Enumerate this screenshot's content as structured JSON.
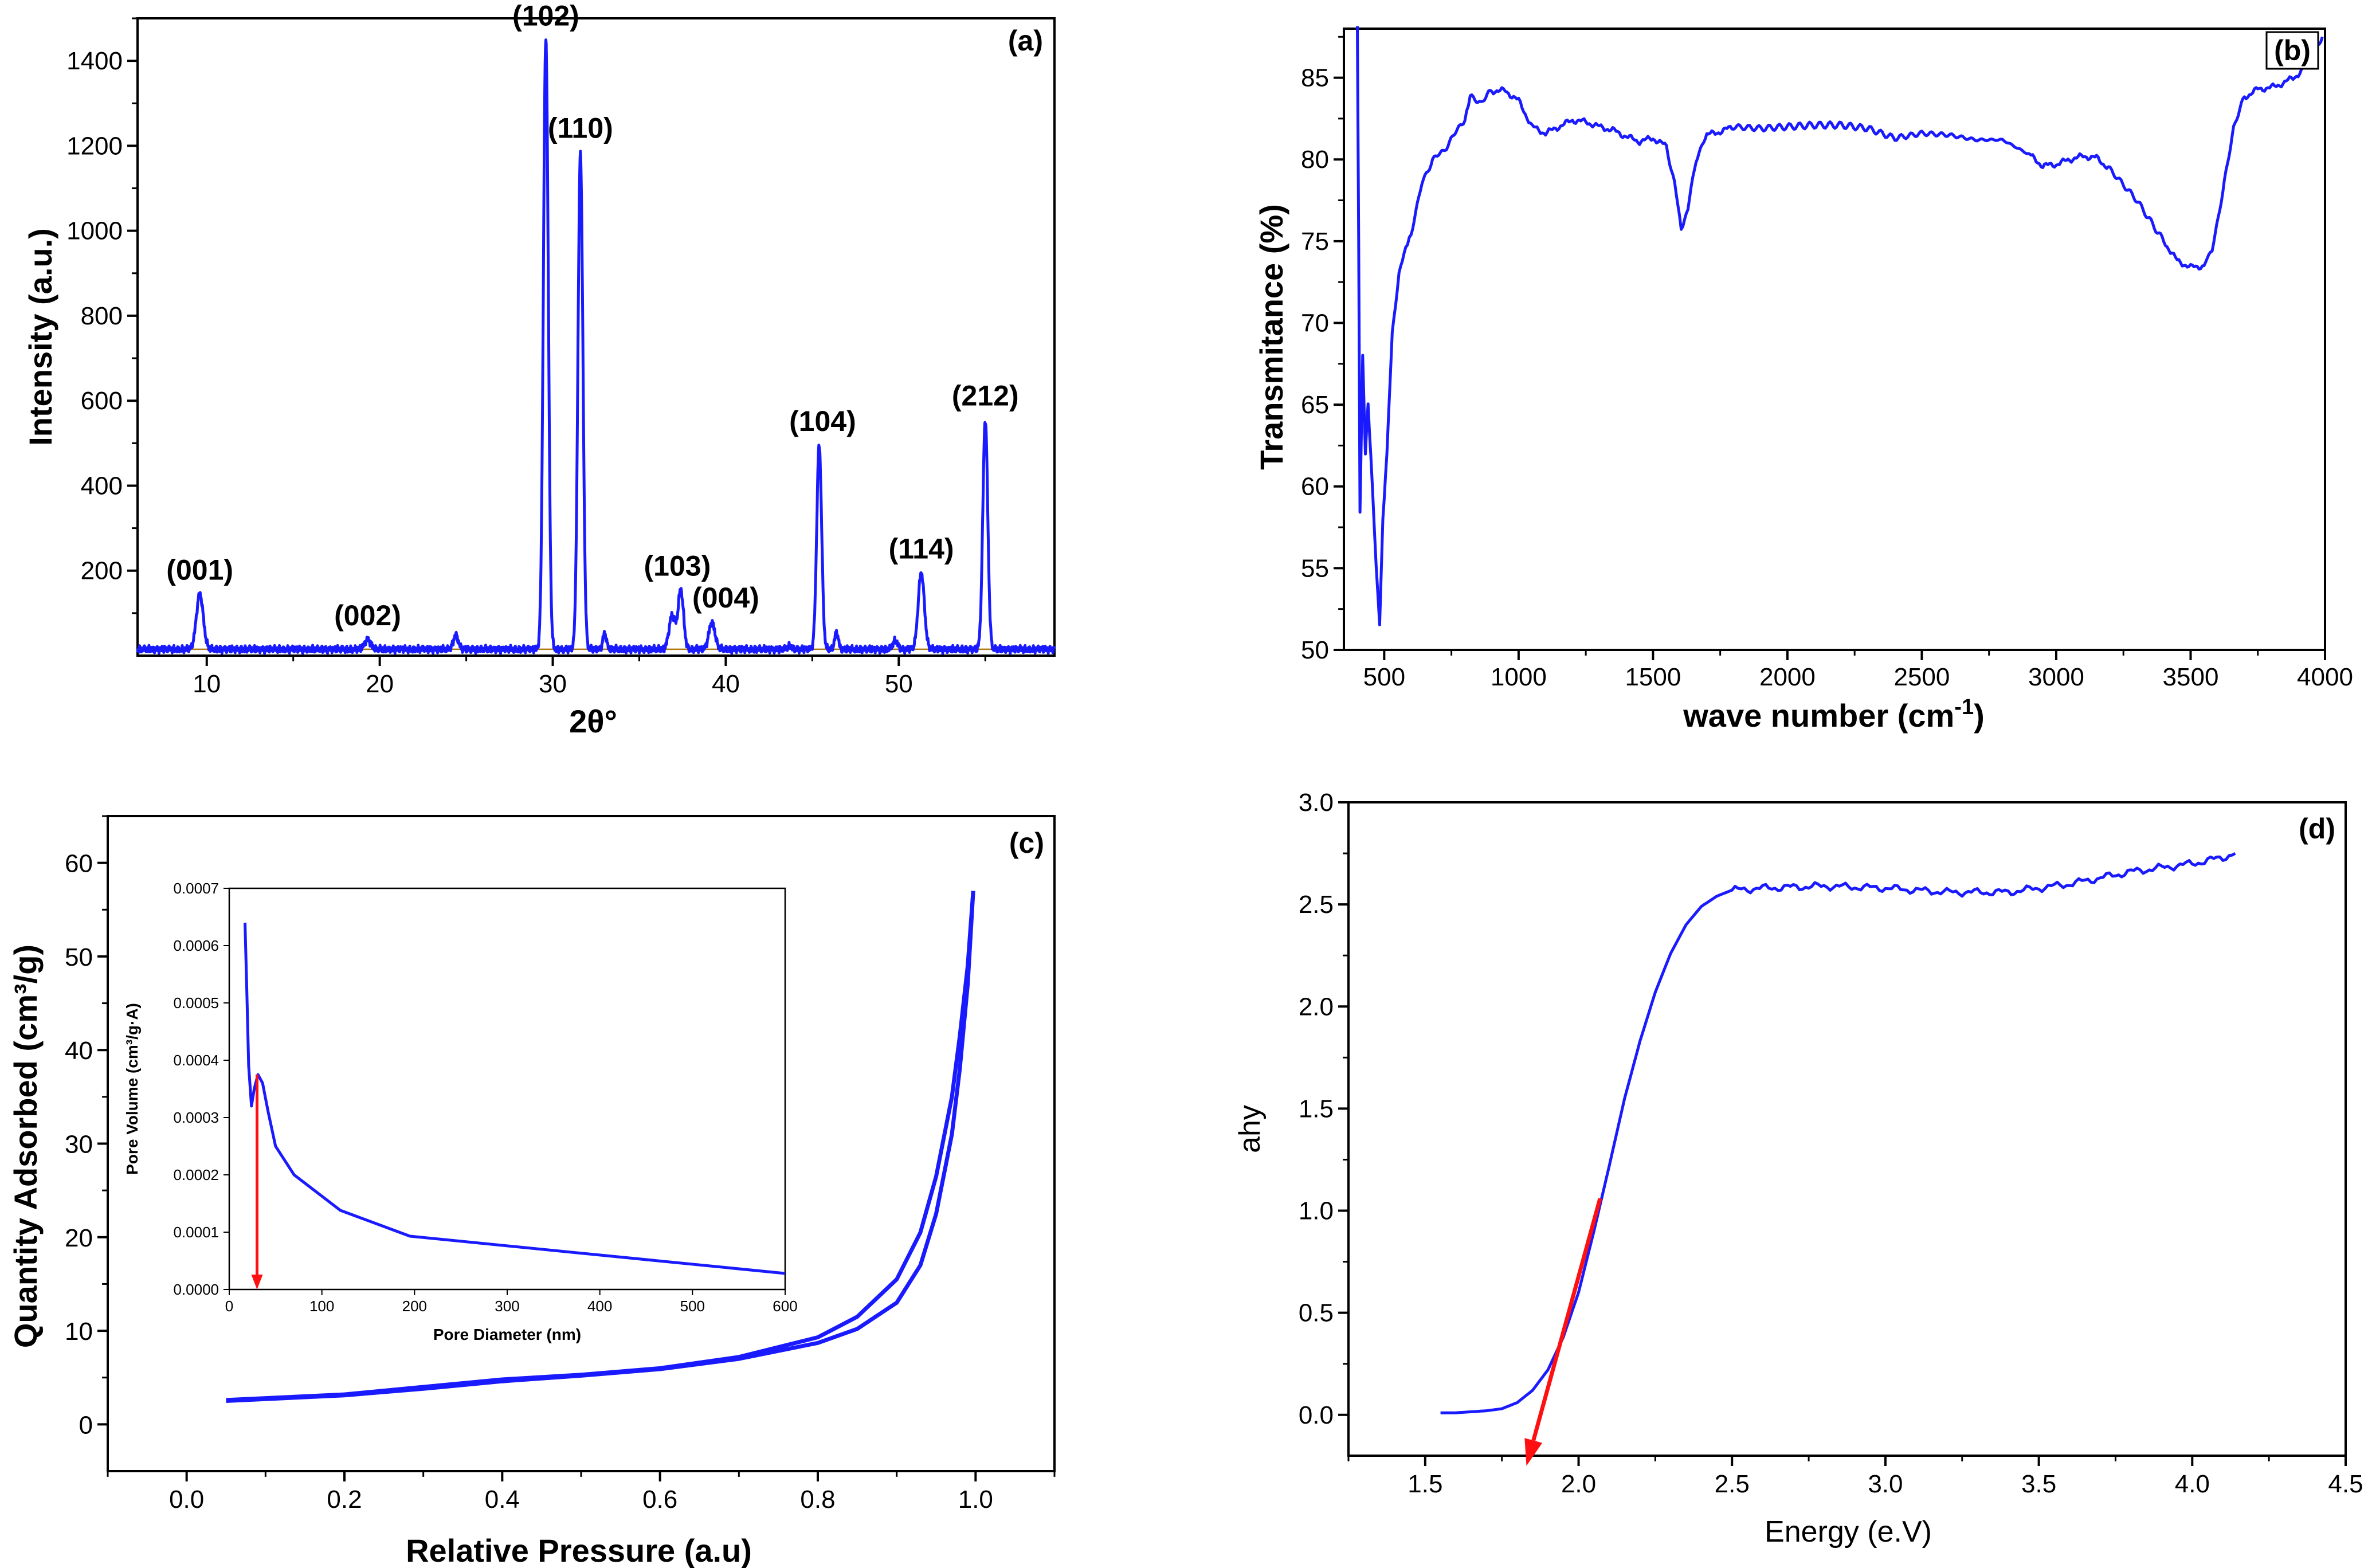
{
  "chart_data": [
    {
      "id": "a",
      "type": "line",
      "panel_label": "(a)",
      "xlabel": "2θ°",
      "ylabel": "Intensity (a.u.)",
      "xlim": [
        6,
        59
      ],
      "ylim": [
        0,
        1500
      ],
      "xticks": [
        10,
        20,
        30,
        40,
        50
      ],
      "yticks": [
        200,
        400,
        600,
        800,
        1000,
        1200,
        1400
      ],
      "baseline": 15,
      "peaks": [
        {
          "x": 9.6,
          "y": 145,
          "w": 0.28,
          "label": "(001)"
        },
        {
          "x": 19.3,
          "y": 38,
          "w": 0.25,
          "label": "(002)"
        },
        {
          "x": 24.4,
          "y": 48,
          "w": 0.2,
          "label": ""
        },
        {
          "x": 29.6,
          "y": 1450,
          "w": 0.2,
          "label": "(102)"
        },
        {
          "x": 31.6,
          "y": 1185,
          "w": 0.2,
          "label": "(110)"
        },
        {
          "x": 33.0,
          "y": 52,
          "w": 0.15,
          "label": ""
        },
        {
          "x": 36.9,
          "y": 95,
          "w": 0.25,
          "label": ""
        },
        {
          "x": 37.4,
          "y": 155,
          "w": 0.22,
          "label": "(103)"
        },
        {
          "x": 39.2,
          "y": 78,
          "w": 0.25,
          "label": "(004)"
        },
        {
          "x": 43.7,
          "y": 22,
          "w": 0.2,
          "label": ""
        },
        {
          "x": 45.4,
          "y": 495,
          "w": 0.2,
          "label": "(104)"
        },
        {
          "x": 46.4,
          "y": 55,
          "w": 0.15,
          "label": ""
        },
        {
          "x": 49.8,
          "y": 35,
          "w": 0.2,
          "label": ""
        },
        {
          "x": 51.3,
          "y": 195,
          "w": 0.25,
          "label": "(114)"
        },
        {
          "x": 55.0,
          "y": 555,
          "w": 0.2,
          "label": "(212)"
        }
      ],
      "peak_labels": [
        {
          "x": 9.6,
          "y": 165,
          "text": "(001)"
        },
        {
          "x": 19.3,
          "y": 58,
          "text": "(002)"
        },
        {
          "x": 29.6,
          "y": 1470,
          "text": "(102)"
        },
        {
          "x": 31.6,
          "y": 1205,
          "text": "(110)"
        },
        {
          "x": 37.2,
          "y": 175,
          "text": "(103)"
        },
        {
          "x": 40.0,
          "y": 100,
          "text": "(004)"
        },
        {
          "x": 45.6,
          "y": 515,
          "text": "(104)"
        },
        {
          "x": 51.3,
          "y": 215,
          "text": "(114)"
        },
        {
          "x": 55.0,
          "y": 575,
          "text": "(212)"
        }
      ]
    },
    {
      "id": "b",
      "type": "line",
      "panel_label": "(b)",
      "xlabel": "wave number (cm",
      "xlabel_sup": "-1",
      "xlabel_tail": ")",
      "ylabel": "Transmitance (%)",
      "xlim": [
        350,
        4000
      ],
      "ylim": [
        50,
        88
      ],
      "xticks": [
        500,
        1000,
        1500,
        2000,
        2500,
        3000,
        3500,
        4000
      ],
      "yticks": [
        50,
        55,
        60,
        65,
        70,
        75,
        80,
        85
      ],
      "points": [
        [
          400,
          88
        ],
        [
          405,
          75
        ],
        [
          410,
          58.5
        ],
        [
          420,
          68
        ],
        [
          430,
          62
        ],
        [
          440,
          65
        ],
        [
          450,
          62
        ],
        [
          470,
          55
        ],
        [
          483,
          51.5
        ],
        [
          495,
          58
        ],
        [
          510,
          62
        ],
        [
          530,
          69.5
        ],
        [
          555,
          73
        ],
        [
          580,
          74.5
        ],
        [
          600,
          75.5
        ],
        [
          640,
          78.5
        ],
        [
          680,
          80
        ],
        [
          720,
          80.5
        ],
        [
          760,
          81.5
        ],
        [
          800,
          82.5
        ],
        [
          820,
          83.8
        ],
        [
          860,
          83.5
        ],
        [
          900,
          84.2
        ],
        [
          950,
          84.2
        ],
        [
          1000,
          83.6
        ],
        [
          1050,
          82
        ],
        [
          1100,
          81.6
        ],
        [
          1150,
          82
        ],
        [
          1200,
          82.4
        ],
        [
          1250,
          82.3
        ],
        [
          1300,
          82
        ],
        [
          1350,
          81.8
        ],
        [
          1400,
          81.4
        ],
        [
          1450,
          81.1
        ],
        [
          1500,
          81.3
        ],
        [
          1550,
          80.8
        ],
        [
          1580,
          78.5
        ],
        [
          1605,
          75.8
        ],
        [
          1630,
          77
        ],
        [
          1660,
          80
        ],
        [
          1700,
          81.5
        ],
        [
          1750,
          81.7
        ],
        [
          1800,
          82
        ],
        [
          1900,
          81.9
        ],
        [
          2000,
          82
        ],
        [
          2100,
          82.1
        ],
        [
          2200,
          82.1
        ],
        [
          2300,
          81.9
        ],
        [
          2400,
          81.3
        ],
        [
          2500,
          81.6
        ],
        [
          2600,
          81.5
        ],
        [
          2700,
          81.2
        ],
        [
          2800,
          81.2
        ],
        [
          2900,
          80.3
        ],
        [
          2950,
          79.6
        ],
        [
          3000,
          79.7
        ],
        [
          3050,
          80
        ],
        [
          3100,
          80.2
        ],
        [
          3150,
          80.1
        ],
        [
          3200,
          79.4
        ],
        [
          3300,
          77.5
        ],
        [
          3400,
          75
        ],
        [
          3450,
          73.8
        ],
        [
          3500,
          73.4
        ],
        [
          3550,
          73.5
        ],
        [
          3580,
          74.5
        ],
        [
          3620,
          78
        ],
        [
          3660,
          82
        ],
        [
          3700,
          83.8
        ],
        [
          3750,
          84.3
        ],
        [
          3800,
          84.4
        ],
        [
          3850,
          84.7
        ],
        [
          3900,
          85.2
        ],
        [
          3950,
          86
        ],
        [
          3990,
          87.5
        ]
      ]
    },
    {
      "id": "c",
      "type": "line",
      "panel_label": "(c)",
      "xlabel": "Relative Pressure (a.u)",
      "ylabel": "Quantity Adsorbed (cm³/g)",
      "xlim": [
        -0.1,
        1.1
      ],
      "ylim": [
        -5,
        65
      ],
      "xticks": [
        0.0,
        0.2,
        0.4,
        0.6,
        0.8,
        1.0
      ],
      "yticks": [
        0,
        10,
        20,
        30,
        40,
        50,
        60
      ],
      "adsorption": [
        [
          0.05,
          2.5
        ],
        [
          0.1,
          2.7
        ],
        [
          0.2,
          3.1
        ],
        [
          0.3,
          3.8
        ],
        [
          0.4,
          4.6
        ],
        [
          0.5,
          5.2
        ],
        [
          0.6,
          5.9
        ],
        [
          0.7,
          7.0
        ],
        [
          0.8,
          8.7
        ],
        [
          0.85,
          10.2
        ],
        [
          0.9,
          13.0
        ],
        [
          0.93,
          17.0
        ],
        [
          0.95,
          22.5
        ],
        [
          0.97,
          31.0
        ],
        [
          0.98,
          38.0
        ],
        [
          0.99,
          47.0
        ],
        [
          0.997,
          57.0
        ]
      ],
      "desorption": [
        [
          0.997,
          57.0
        ],
        [
          0.99,
          49.0
        ],
        [
          0.98,
          41.5
        ],
        [
          0.97,
          35.0
        ],
        [
          0.95,
          26.5
        ],
        [
          0.93,
          20.5
        ],
        [
          0.9,
          15.5
        ],
        [
          0.85,
          11.5
        ],
        [
          0.8,
          9.3
        ],
        [
          0.7,
          7.2
        ],
        [
          0.6,
          6.0
        ],
        [
          0.5,
          5.3
        ],
        [
          0.4,
          4.8
        ],
        [
          0.3,
          4.0
        ],
        [
          0.2,
          3.2
        ],
        [
          0.1,
          2.8
        ],
        [
          0.05,
          2.6
        ]
      ],
      "inset": {
        "type": "line",
        "xlabel": "Pore Diameter (nm)",
        "ylabel": "Pore Volume (cm³/g·A)",
        "xlim": [
          0,
          600
        ],
        "ylim": [
          0,
          0.0007
        ],
        "xticks": [
          0,
          100,
          200,
          300,
          400,
          500,
          600
        ],
        "yticks": [
          "0.0000",
          "0.0001",
          "0.0002",
          "0.0003",
          "0.0004",
          "0.0005",
          "0.0006",
          "0.0007"
        ],
        "ytick_values": [
          0,
          0.0001,
          0.0002,
          0.0003,
          0.0004,
          0.0005,
          0.0006,
          0.0007
        ],
        "points": [
          [
            17,
            0.00064
          ],
          [
            19,
            0.00052
          ],
          [
            21,
            0.00039
          ],
          [
            24,
            0.00032
          ],
          [
            27,
            0.00035
          ],
          [
            31,
            0.000375
          ],
          [
            36,
            0.00036
          ],
          [
            42,
            0.00031
          ],
          [
            50,
            0.00025
          ],
          [
            70,
            0.0002
          ],
          [
            120,
            0.000138
          ],
          [
            195,
            9.3e-05
          ],
          [
            600,
            2.8e-05
          ]
        ],
        "arrow_x": 30,
        "arrow_from": 0.000375,
        "arrow_to": 0.0
      }
    },
    {
      "id": "d",
      "type": "line",
      "panel_label": "(d)",
      "xlabel": "Energy (e.V)",
      "ylabel": "ahy",
      "xlim": [
        1.25,
        4.5
      ],
      "ylim": [
        -0.2,
        3.0
      ],
      "xticks": [
        1.5,
        2.0,
        2.5,
        3.0,
        3.5,
        4.0,
        4.5
      ],
      "yticks": [
        0.0,
        0.5,
        1.0,
        1.5,
        2.0,
        2.5,
        3.0
      ],
      "points": [
        [
          1.55,
          0.01
        ],
        [
          1.6,
          0.01
        ],
        [
          1.7,
          0.02
        ],
        [
          1.75,
          0.03
        ],
        [
          1.8,
          0.06
        ],
        [
          1.85,
          0.12
        ],
        [
          1.9,
          0.22
        ],
        [
          1.95,
          0.38
        ],
        [
          2.0,
          0.6
        ],
        [
          2.05,
          0.9
        ],
        [
          2.1,
          1.22
        ],
        [
          2.15,
          1.55
        ],
        [
          2.2,
          1.83
        ],
        [
          2.25,
          2.07
        ],
        [
          2.3,
          2.26
        ],
        [
          2.35,
          2.4
        ],
        [
          2.4,
          2.49
        ],
        [
          2.45,
          2.54
        ],
        [
          2.5,
          2.57
        ],
        [
          2.6,
          2.58
        ],
        [
          2.8,
          2.59
        ],
        [
          3.0,
          2.58
        ],
        [
          3.2,
          2.56
        ],
        [
          3.4,
          2.56
        ],
        [
          3.6,
          2.6
        ],
        [
          3.8,
          2.66
        ],
        [
          4.0,
          2.7
        ],
        [
          4.1,
          2.73
        ],
        [
          4.14,
          2.75
        ]
      ],
      "tangent": {
        "from": [
          2.07,
          1.06
        ],
        "to": [
          1.83,
          -0.25
        ]
      }
    }
  ]
}
